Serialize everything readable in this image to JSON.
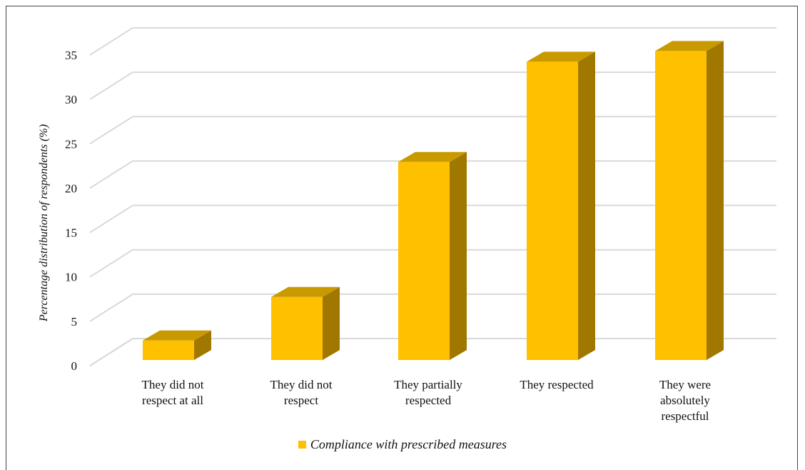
{
  "chart_data": {
    "type": "bar",
    "categories": [
      [
        "They did not",
        "respect at all"
      ],
      [
        "They did not",
        "respect"
      ],
      [
        "They partially",
        "respected"
      ],
      [
        "They respected"
      ],
      [
        "They were",
        "absolutely",
        "respectful"
      ]
    ],
    "series": [
      {
        "name": "Compliance with prescribed measures",
        "values": [
          2.2,
          7.1,
          22.3,
          33.6,
          34.8
        ]
      }
    ],
    "ylabel": "Percentage distribution of respondents (%)",
    "xlabel": "",
    "ylim": [
      0,
      35
    ],
    "yticks": [
      0,
      5,
      10,
      15,
      20,
      25,
      30,
      35
    ],
    "grid": true,
    "legend_position": "bottom",
    "style": "3d-column"
  },
  "colors": {
    "bar_front": "#FFC000",
    "bar_top": "#C99A00",
    "bar_side": "#A07800",
    "grid": "#D9D9D9",
    "legend_swatch": "#FFC000"
  }
}
